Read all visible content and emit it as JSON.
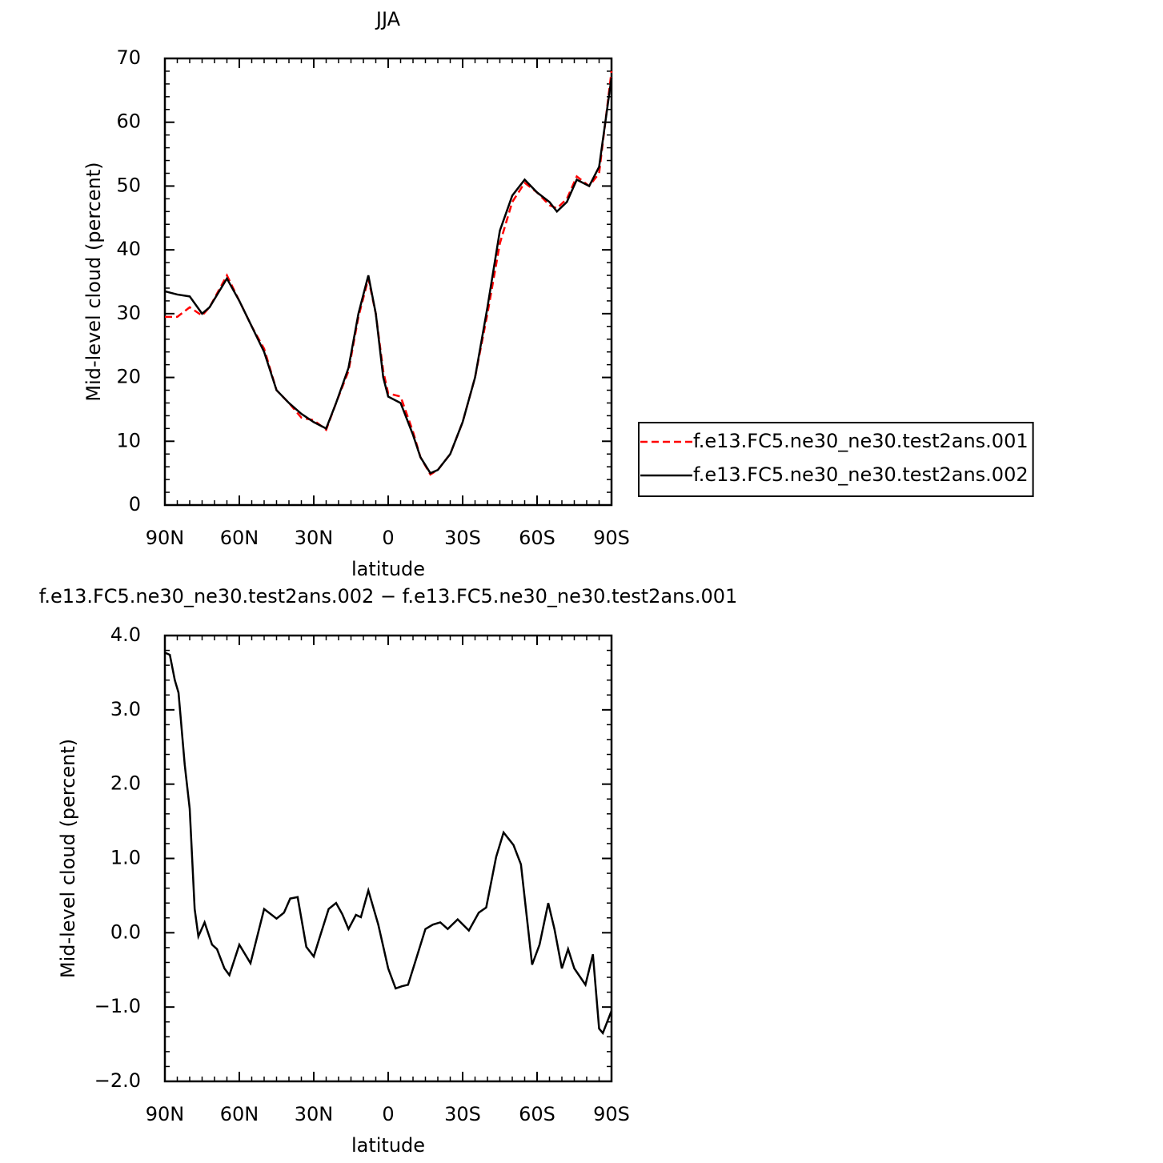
{
  "chart_data": [
    {
      "type": "line",
      "title": "JJA",
      "x_label": "latitude",
      "y_label": "Mid-level cloud (percent)",
      "x": [
        90,
        85,
        80,
        75,
        72,
        65,
        60,
        55,
        50,
        45,
        40,
        35,
        30,
        25,
        21,
        16,
        12,
        8,
        5,
        2,
        0,
        -5,
        -10,
        -13,
        -17,
        -20,
        -25,
        -30,
        -35,
        -40,
        -45,
        -50,
        -55,
        -60,
        -65,
        -68,
        -72,
        -76,
        -81,
        -85,
        -90
      ],
      "series": [
        {
          "name": "f.e13.FC5.ne30_ne30.test2ans.001",
          "color": "#ff0000",
          "line_style": "dashed",
          "values": [
            29.5,
            29.5,
            31,
            29.7,
            31,
            36,
            32,
            28,
            24.5,
            18,
            16,
            13.7,
            13.3,
            11.8,
            16,
            21,
            29.5,
            35.5,
            30,
            21,
            17.5,
            17,
            11.5,
            7.5,
            4.8,
            5.5,
            8,
            13,
            20,
            30,
            41,
            47.5,
            50.5,
            49,
            47,
            46.5,
            48,
            51.5,
            50,
            52,
            68
          ]
        },
        {
          "name": "f.e13.FC5.ne30_ne30.test2ans.002",
          "color": "#000000",
          "line_style": "solid",
          "values": [
            33.5,
            33,
            32.7,
            30,
            31,
            35.5,
            32,
            28,
            24,
            18,
            16,
            14.3,
            13,
            12,
            16,
            21.5,
            30,
            36,
            30,
            20,
            17,
            16,
            11,
            7.5,
            5,
            5.5,
            8,
            13,
            20,
            31,
            43,
            48.5,
            51,
            49,
            47.5,
            46,
            47.5,
            51,
            50,
            53,
            67
          ]
        }
      ],
      "xlim": [
        90,
        -90
      ],
      "xticks": [
        {
          "value": 90,
          "label": "90N"
        },
        {
          "value": 60,
          "label": "60N"
        },
        {
          "value": 30,
          "label": "30N"
        },
        0,
        {
          "value": -30,
          "label": "30S"
        },
        {
          "value": -60,
          "label": "60S"
        },
        {
          "value": -90,
          "label": "90S"
        }
      ],
      "ylim": [
        0,
        70
      ],
      "yticks": [
        0,
        10,
        20,
        30,
        40,
        50,
        60,
        70
      ],
      "legend": "right"
    },
    {
      "type": "line",
      "title": "f.e13.FC5.ne30_ne30.test2ans.002 − f.e13.FC5.ne30_ne30.test2ans.001",
      "x_label": "latitude",
      "y_label": "Mid-level cloud (percent)",
      "x": [
        90,
        88,
        86,
        84.5,
        82,
        80,
        78,
        76.5,
        74,
        71,
        69,
        66,
        64,
        60,
        55.5,
        50,
        45,
        42,
        39.5,
        36.5,
        33,
        30,
        27.5,
        24,
        21,
        18.5,
        16,
        13,
        11,
        8,
        4,
        0,
        -3,
        -5.5,
        -8,
        -11,
        -15,
        -18,
        -21,
        -24,
        -28,
        -32.5,
        -36.5,
        -39.5,
        -43.5,
        -46.5,
        -50.5,
        -53.5,
        -58,
        -61,
        -64.5,
        -67,
        -70,
        -72.5,
        -75,
        -79.5,
        -82.5,
        -85,
        -86.5,
        -90
      ],
      "values": [
        3.77,
        3.74,
        3.4,
        3.23,
        2.26,
        1.67,
        0.32,
        -0.05,
        0.14,
        -0.16,
        -0.22,
        -0.48,
        -0.57,
        -0.16,
        -0.41,
        0.32,
        0.19,
        0.27,
        0.46,
        0.48,
        -0.19,
        -0.32,
        -0.05,
        0.32,
        0.4,
        0.25,
        0.05,
        0.24,
        0.21,
        0.57,
        0.11,
        -0.48,
        -0.75,
        -0.72,
        -0.7,
        -0.38,
        0.05,
        0.11,
        0.14,
        0.05,
        0.18,
        0.03,
        0.27,
        0.34,
        1.02,
        1.35,
        1.18,
        0.92,
        -0.43,
        -0.16,
        0.4,
        0.05,
        -0.48,
        -0.22,
        -0.48,
        -0.7,
        -0.29,
        -1.29,
        -1.35,
        -1.05
      ],
      "color": "#000000",
      "xlim": [
        90,
        -90
      ],
      "xticks": [
        {
          "value": 90,
          "label": "90N"
        },
        {
          "value": 60,
          "label": "60N"
        },
        {
          "value": 30,
          "label": "30N"
        },
        0,
        {
          "value": -30,
          "label": "30S"
        },
        {
          "value": -60,
          "label": "60S"
        },
        {
          "value": -90,
          "label": "90S"
        }
      ],
      "ylim": [
        -2,
        4
      ],
      "yticks": [
        {
          "value": -2,
          "label": "−2.0"
        },
        {
          "value": -1,
          "label": "−1.0"
        },
        {
          "value": 0,
          "label": "0.0"
        },
        {
          "value": 1,
          "label": "1.0"
        },
        {
          "value": 2,
          "label": "2.0"
        },
        {
          "value": 3,
          "label": "3.0"
        },
        {
          "value": 4,
          "label": "4.0"
        }
      ]
    }
  ]
}
